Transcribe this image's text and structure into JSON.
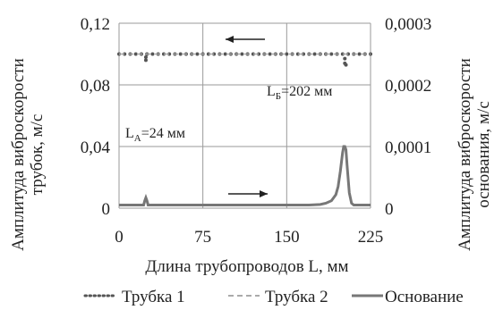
{
  "chart_data": {
    "type": "line",
    "title": "",
    "xlabel": "Длина трубопроводов L, мм",
    "ylabel_left": [
      "Амплитуда виброскорости",
      "трубок, м/с"
    ],
    "ylabel_right": [
      "Амплитуда виброскорости",
      "основания, м/с"
    ],
    "xlim": [
      0,
      225
    ],
    "ylim_left": [
      0,
      0.12
    ],
    "ylim_right": [
      0,
      0.0003
    ],
    "x_ticks": [
      "0",
      "75",
      "150",
      "225"
    ],
    "y_left_ticks": [
      "0",
      "0,04",
      "0,08",
      "0,12"
    ],
    "y_right_ticks": [
      "0",
      "0,0001",
      "0,0002",
      "0,0003"
    ],
    "grid": true,
    "legend_position": "bottom",
    "annotations": {
      "la": {
        "main": "L",
        "sub": "A",
        "rest": "=24 мм"
      },
      "lb": {
        "main": "L",
        "sub": "Б",
        "rest": "=202 мм"
      }
    },
    "series": [
      {
        "name": "Трубка 1",
        "axis": "left",
        "style": "dotted",
        "color": "#555555",
        "x": [
          0,
          5,
          10,
          15,
          20,
          25,
          30,
          35,
          40,
          45,
          50,
          55,
          60,
          65,
          70,
          75,
          80,
          85,
          90,
          95,
          100,
          105,
          110,
          115,
          120,
          125,
          130,
          135,
          140,
          145,
          150,
          155,
          160,
          165,
          170,
          175,
          180,
          185,
          190,
          195,
          200,
          205,
          210,
          215,
          220,
          225
        ],
        "y": [
          0.1,
          0.1,
          0.1,
          0.1,
          0.1,
          0.1,
          0.1,
          0.1,
          0.1,
          0.1,
          0.1,
          0.1,
          0.1,
          0.1,
          0.1,
          0.1,
          0.1,
          0.1,
          0.1,
          0.1,
          0.1,
          0.1,
          0.1,
          0.1,
          0.1,
          0.1,
          0.1,
          0.1,
          0.1,
          0.1,
          0.1,
          0.1,
          0.1,
          0.1,
          0.1,
          0.1,
          0.1,
          0.1,
          0.1,
          0.1,
          0.1,
          0.1,
          0.1,
          0.1,
          0.1,
          0.1
        ],
        "extra_points": [
          [
            24,
            0.098
          ],
          [
            24,
            0.096
          ],
          [
            202,
            0.097
          ],
          [
            202,
            0.094
          ],
          [
            203,
            0.093
          ]
        ]
      },
      {
        "name": "Трубка 2",
        "axis": "left",
        "style": "dashed",
        "color": "#aaaaaa",
        "x": [
          0,
          225
        ],
        "y": [
          0.1,
          0.1
        ]
      },
      {
        "name": "Основание",
        "axis": "right",
        "style": "solid",
        "color": "#777777",
        "x": [
          0,
          22,
          23,
          24,
          25,
          26,
          27,
          50,
          100,
          150,
          170,
          180,
          185,
          190,
          194,
          196,
          198,
          200,
          201,
          202,
          203,
          204,
          206,
          208,
          210,
          225
        ],
        "y": [
          5e-06,
          5e-06,
          1.2e-05,
          1.7e-05,
          1.2e-05,
          5e-06,
          5e-06,
          5e-06,
          5e-06,
          5e-06,
          5e-06,
          6e-06,
          8e-06,
          1.2e-05,
          2.2e-05,
          3.5e-05,
          6e-05,
          9e-05,
          0.0001,
          0.0001,
          9.5e-05,
          7e-05,
          2.5e-05,
          8e-06,
          5e-06,
          5e-06
        ]
      }
    ]
  }
}
